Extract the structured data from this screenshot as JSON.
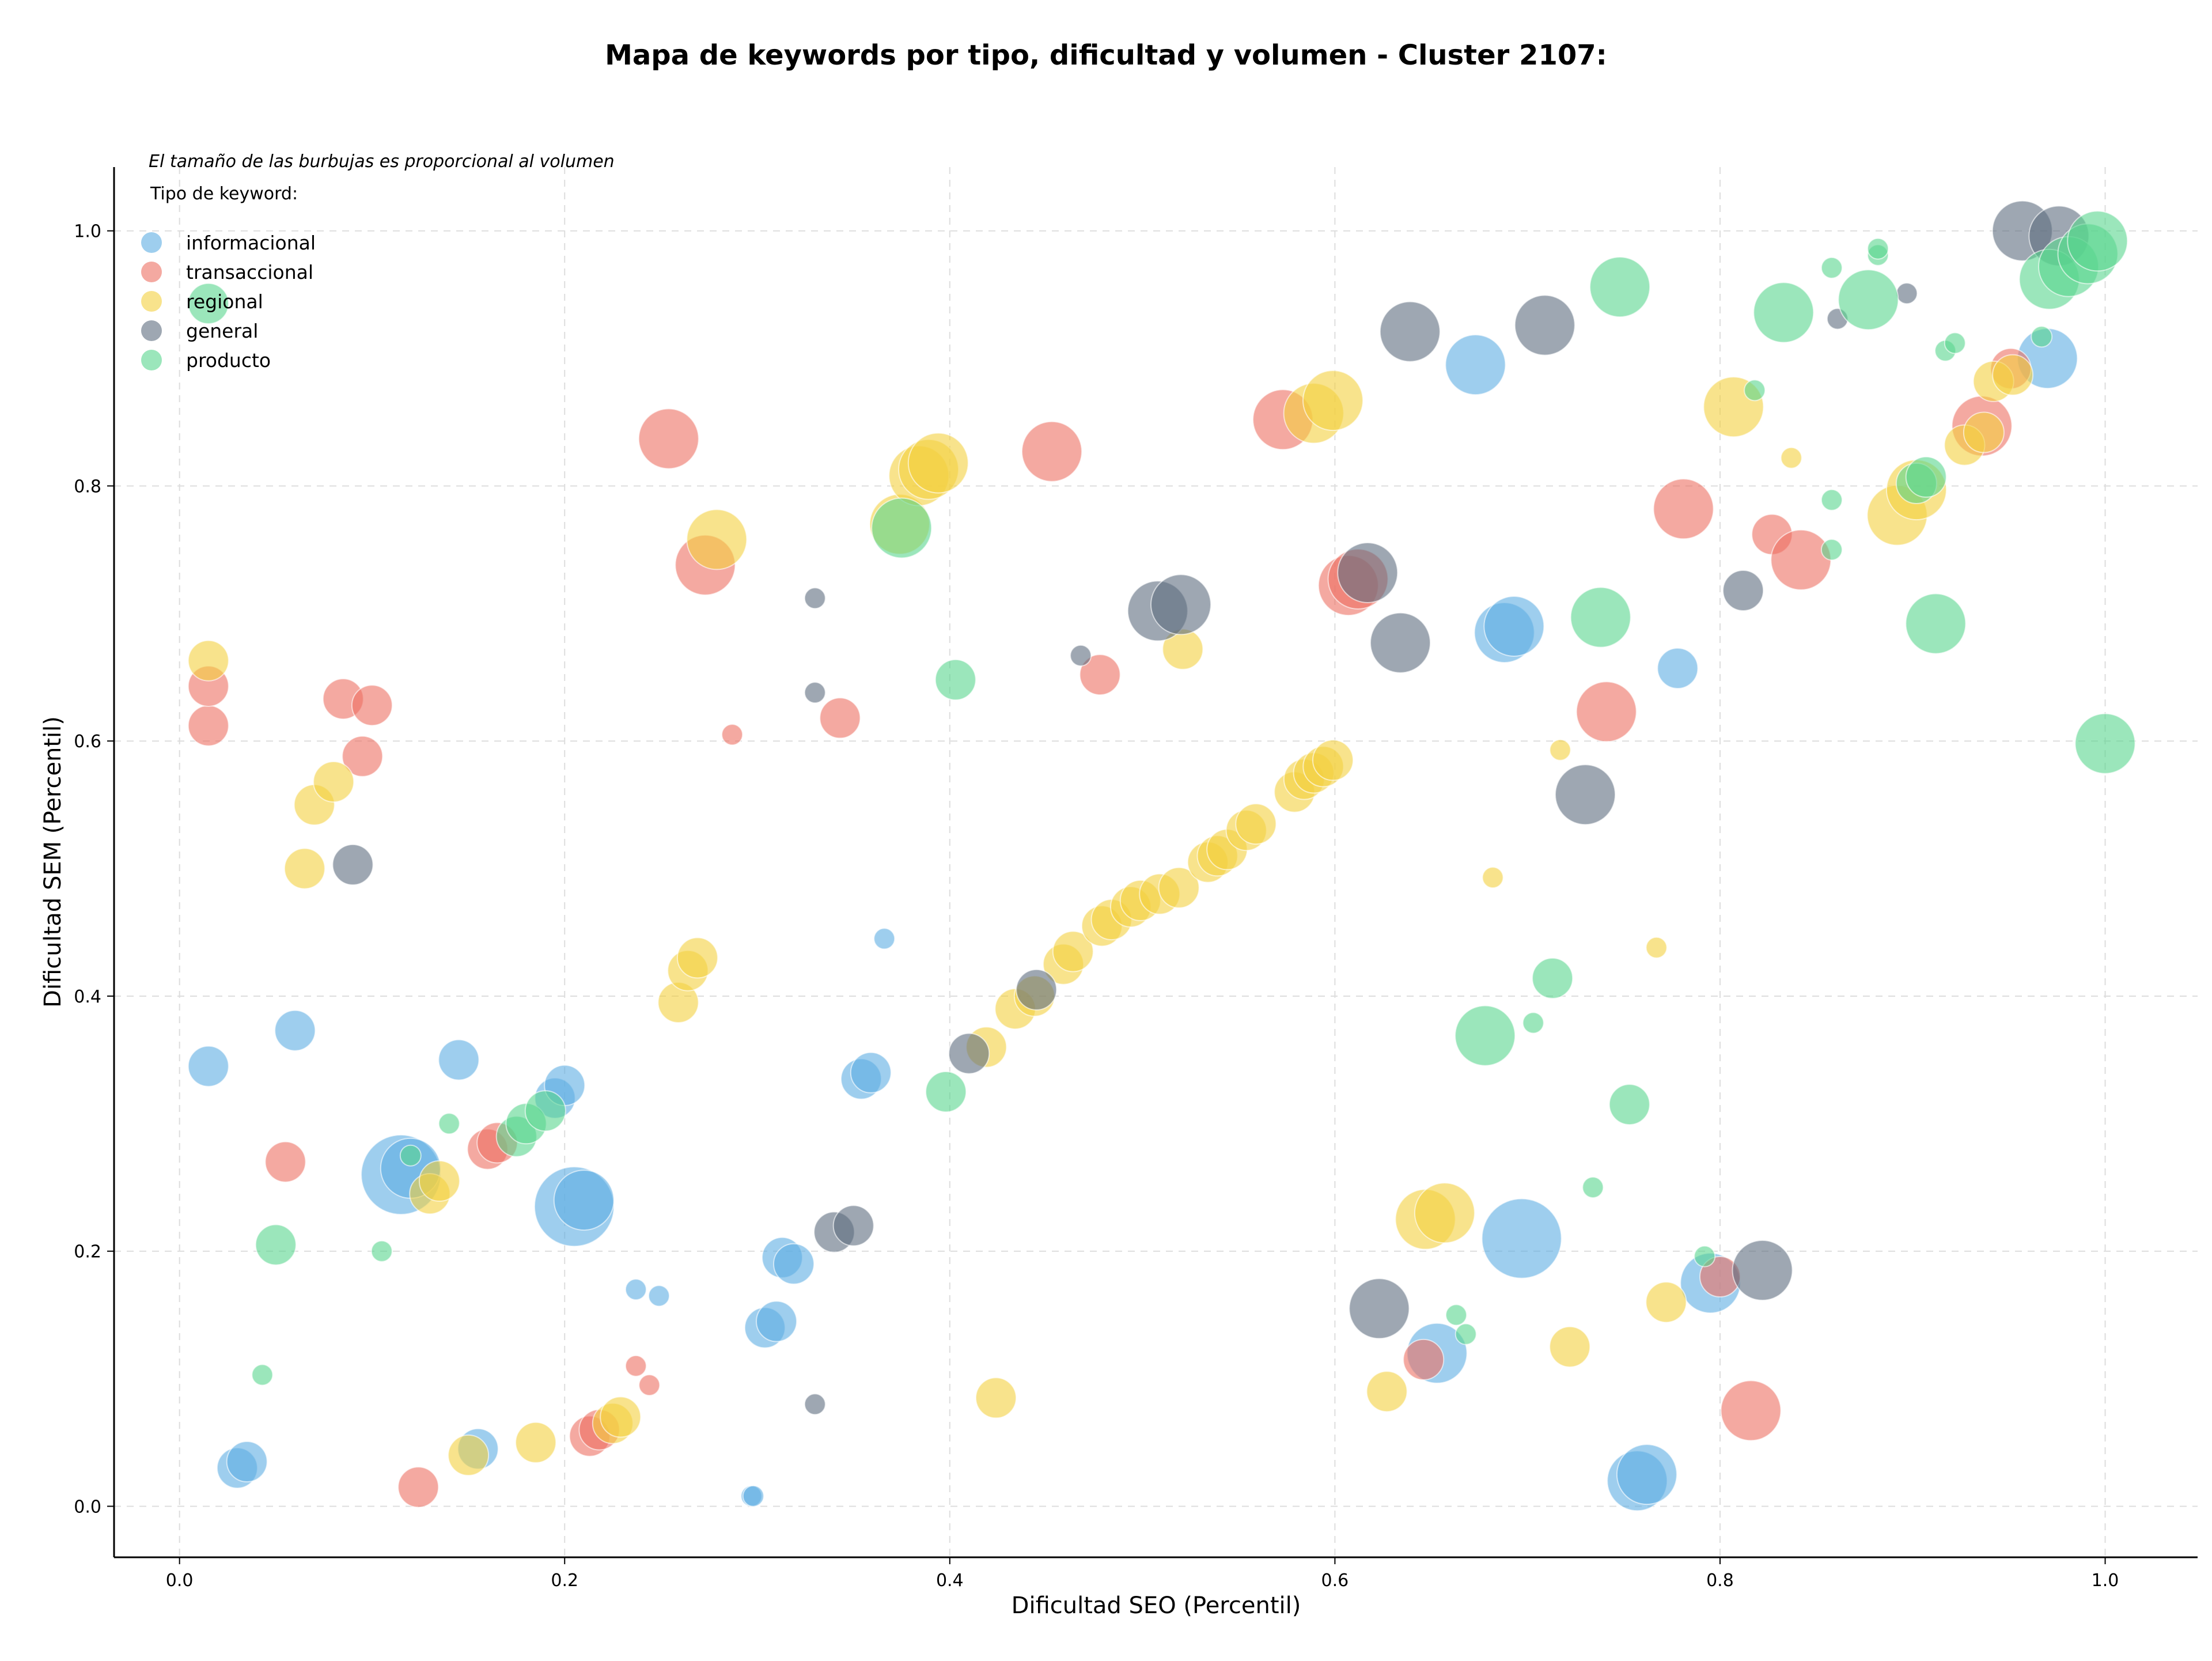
{
  "chart_data": {
    "type": "scatter",
    "title": "Mapa de keywords por tipo, dificultad y volumen - Cluster 2107:",
    "xlabel": "Dificultad SEO (Percentil)",
    "ylabel": "Dificultad SEM (Percentil)",
    "note": "El tamaño de las burbujas es proporcional al volumen",
    "legend_title": "Tipo de keyword:",
    "legend_position": "top-left",
    "xlim": [
      -0.034,
      1.048
    ],
    "ylim": [
      -0.04,
      1.05
    ],
    "x_ticks": [
      "0.0",
      "0.2",
      "0.4",
      "0.6",
      "0.8",
      "1.0"
    ],
    "y_ticks": [
      "0.0",
      "0.2",
      "0.4",
      "0.6",
      "0.8",
      "1.0"
    ],
    "grid": true,
    "size_unit": "relative volume (1-5)",
    "series": [
      {
        "name": "informacional",
        "color": "#5dade2",
        "points": [
          [
            0.015,
            0.345,
            2
          ],
          [
            0.06,
            0.373,
            2
          ],
          [
            0.03,
            0.03,
            2
          ],
          [
            0.035,
            0.035,
            2
          ],
          [
            0.115,
            0.26,
            4
          ],
          [
            0.12,
            0.265,
            3
          ],
          [
            0.145,
            0.35,
            2
          ],
          [
            0.155,
            0.045,
            2
          ],
          [
            0.195,
            0.32,
            2
          ],
          [
            0.2,
            0.33,
            2
          ],
          [
            0.205,
            0.235,
            4
          ],
          [
            0.21,
            0.24,
            3
          ],
          [
            0.237,
            0.17,
            1
          ],
          [
            0.249,
            0.165,
            1
          ],
          [
            0.297,
            0.008,
            1
          ],
          [
            0.298,
            0.008,
            1
          ],
          [
            0.304,
            0.14,
            2
          ],
          [
            0.31,
            0.145,
            2
          ],
          [
            0.313,
            0.195,
            2
          ],
          [
            0.319,
            0.19,
            2
          ],
          [
            0.354,
            0.335,
            2
          ],
          [
            0.359,
            0.34,
            2
          ],
          [
            0.366,
            0.445,
            1
          ],
          [
            0.673,
            0.895,
            3
          ],
          [
            0.688,
            0.685,
            3
          ],
          [
            0.693,
            0.69,
            3
          ],
          [
            0.697,
            0.21,
            4
          ],
          [
            0.757,
            0.02,
            3
          ],
          [
            0.762,
            0.025,
            3
          ],
          [
            0.778,
            0.657,
            2
          ],
          [
            0.795,
            0.175,
            3
          ],
          [
            0.653,
            0.12,
            3
          ],
          [
            0.97,
            0.9,
            3
          ]
        ]
      },
      {
        "name": "transaccional",
        "color": "#ec7063",
        "points": [
          [
            0.015,
            0.612,
            2
          ],
          [
            0.015,
            0.643,
            2
          ],
          [
            0.055,
            0.27,
            2
          ],
          [
            0.085,
            0.633,
            2
          ],
          [
            0.1,
            0.628,
            2
          ],
          [
            0.095,
            0.588,
            2
          ],
          [
            0.124,
            0.015,
            2
          ],
          [
            0.16,
            0.28,
            2
          ],
          [
            0.165,
            0.285,
            2
          ],
          [
            0.213,
            0.055,
            2
          ],
          [
            0.218,
            0.06,
            2
          ],
          [
            0.237,
            0.11,
            1
          ],
          [
            0.244,
            0.095,
            1
          ],
          [
            0.254,
            0.837,
            3
          ],
          [
            0.273,
            0.738,
            3
          ],
          [
            0.287,
            0.605,
            1
          ],
          [
            0.343,
            0.618,
            2
          ],
          [
            0.453,
            0.827,
            3
          ],
          [
            0.478,
            0.652,
            2
          ],
          [
            0.573,
            0.852,
            3
          ],
          [
            0.607,
            0.722,
            3
          ],
          [
            0.612,
            0.727,
            3
          ],
          [
            0.646,
            0.115,
            2
          ],
          [
            0.741,
            0.623,
            3
          ],
          [
            0.781,
            0.782,
            3
          ],
          [
            0.8,
            0.18,
            2
          ],
          [
            0.816,
            0.075,
            3
          ],
          [
            0.827,
            0.762,
            2
          ],
          [
            0.842,
            0.742,
            3
          ],
          [
            0.936,
            0.847,
            3
          ],
          [
            0.951,
            0.892,
            2
          ]
        ]
      },
      {
        "name": "regional",
        "color": "#f4d03f",
        "points": [
          [
            0.015,
            0.663,
            2
          ],
          [
            0.065,
            0.5,
            2
          ],
          [
            0.07,
            0.55,
            2
          ],
          [
            0.08,
            0.568,
            2
          ],
          [
            0.13,
            0.245,
            2
          ],
          [
            0.135,
            0.255,
            2
          ],
          [
            0.15,
            0.04,
            2
          ],
          [
            0.185,
            0.05,
            2
          ],
          [
            0.225,
            0.065,
            2
          ],
          [
            0.229,
            0.07,
            2
          ],
          [
            0.259,
            0.395,
            2
          ],
          [
            0.264,
            0.42,
            2
          ],
          [
            0.269,
            0.43,
            2
          ],
          [
            0.279,
            0.758,
            3
          ],
          [
            0.374,
            0.77,
            3
          ],
          [
            0.384,
            0.808,
            3
          ],
          [
            0.389,
            0.813,
            3
          ],
          [
            0.394,
            0.818,
            3
          ],
          [
            0.419,
            0.36,
            2
          ],
          [
            0.424,
            0.085,
            2
          ],
          [
            0.434,
            0.39,
            2
          ],
          [
            0.444,
            0.4,
            2
          ],
          [
            0.459,
            0.425,
            2
          ],
          [
            0.464,
            0.435,
            2
          ],
          [
            0.479,
            0.455,
            2
          ],
          [
            0.484,
            0.46,
            2
          ],
          [
            0.494,
            0.47,
            2
          ],
          [
            0.499,
            0.475,
            2
          ],
          [
            0.509,
            0.48,
            2
          ],
          [
            0.519,
            0.485,
            2
          ],
          [
            0.521,
            0.672,
            2
          ],
          [
            0.534,
            0.505,
            2
          ],
          [
            0.539,
            0.51,
            2
          ],
          [
            0.544,
            0.515,
            2
          ],
          [
            0.554,
            0.53,
            2
          ],
          [
            0.559,
            0.535,
            2
          ],
          [
            0.579,
            0.56,
            2
          ],
          [
            0.584,
            0.57,
            2
          ],
          [
            0.589,
            0.575,
            2
          ],
          [
            0.594,
            0.58,
            2
          ],
          [
            0.599,
            0.585,
            2
          ],
          [
            0.589,
            0.857,
            3
          ],
          [
            0.599,
            0.867,
            3
          ],
          [
            0.627,
            0.09,
            2
          ],
          [
            0.647,
            0.225,
            3
          ],
          [
            0.657,
            0.23,
            3
          ],
          [
            0.682,
            0.493,
            1
          ],
          [
            0.717,
            0.593,
            1
          ],
          [
            0.722,
            0.125,
            2
          ],
          [
            0.767,
            0.438,
            1
          ],
          [
            0.772,
            0.16,
            2
          ],
          [
            0.807,
            0.862,
            3
          ],
          [
            0.837,
            0.822,
            1
          ],
          [
            0.892,
            0.777,
            3
          ],
          [
            0.902,
            0.797,
            3
          ],
          [
            0.927,
            0.832,
            2
          ],
          [
            0.937,
            0.842,
            2
          ],
          [
            0.942,
            0.882,
            2
          ],
          [
            0.952,
            0.887,
            2
          ]
        ]
      },
      {
        "name": "general",
        "color": "#5d6d7e",
        "points": [
          [
            0.09,
            0.503,
            2
          ],
          [
            0.33,
            0.712,
            1
          ],
          [
            0.33,
            0.638,
            1
          ],
          [
            0.34,
            0.215,
            2
          ],
          [
            0.35,
            0.22,
            2
          ],
          [
            0.33,
            0.08,
            1
          ],
          [
            0.41,
            0.355,
            2
          ],
          [
            0.445,
            0.405,
            2
          ],
          [
            0.468,
            0.667,
            1
          ],
          [
            0.508,
            0.702,
            3
          ],
          [
            0.52,
            0.707,
            3
          ],
          [
            0.617,
            0.732,
            3
          ],
          [
            0.623,
            0.155,
            3
          ],
          [
            0.634,
            0.677,
            3
          ],
          [
            0.639,
            0.921,
            3
          ],
          [
            0.709,
            0.926,
            3
          ],
          [
            0.73,
            0.558,
            3
          ],
          [
            0.812,
            0.718,
            2
          ],
          [
            0.822,
            0.185,
            3
          ],
          [
            0.861,
            0.931,
            1
          ],
          [
            0.897,
            0.951,
            1
          ],
          [
            0.957,
            1.0,
            3
          ],
          [
            0.976,
            0.996,
            3
          ]
        ]
      },
      {
        "name": "producto",
        "color": "#58d68d",
        "points": [
          [
            0.015,
            0.943,
            2
          ],
          [
            0.043,
            0.103,
            1
          ],
          [
            0.05,
            0.205,
            2
          ],
          [
            0.105,
            0.2,
            1
          ],
          [
            0.12,
            0.275,
            1
          ],
          [
            0.14,
            0.3,
            1
          ],
          [
            0.175,
            0.29,
            2
          ],
          [
            0.18,
            0.3,
            2
          ],
          [
            0.19,
            0.31,
            2
          ],
          [
            0.375,
            0.767,
            3
          ],
          [
            0.398,
            0.325,
            2
          ],
          [
            0.403,
            0.648,
            2
          ],
          [
            0.663,
            0.15,
            1
          ],
          [
            0.668,
            0.135,
            1
          ],
          [
            0.678,
            0.369,
            3
          ],
          [
            0.703,
            0.379,
            1
          ],
          [
            0.713,
            0.414,
            2
          ],
          [
            0.734,
            0.25,
            1
          ],
          [
            0.738,
            0.697,
            3
          ],
          [
            0.748,
            0.956,
            3
          ],
          [
            0.753,
            0.315,
            2
          ],
          [
            0.792,
            0.196,
            1
          ],
          [
            0.818,
            0.875,
            1
          ],
          [
            0.833,
            0.936,
            3
          ],
          [
            0.858,
            0.971,
            1
          ],
          [
            0.858,
            0.789,
            1
          ],
          [
            0.858,
            0.75,
            1
          ],
          [
            0.877,
            0.946,
            3
          ],
          [
            0.882,
            0.981,
            1
          ],
          [
            0.882,
            0.986,
            1
          ],
          [
            0.902,
            0.802,
            2
          ],
          [
            0.907,
            0.807,
            2
          ],
          [
            0.912,
            0.692,
            3
          ],
          [
            0.917,
            0.906,
            1
          ],
          [
            0.922,
            0.912,
            1
          ],
          [
            0.967,
            0.917,
            1
          ],
          [
            0.971,
            0.962,
            3
          ],
          [
            0.981,
            0.972,
            3
          ],
          [
            0.991,
            0.982,
            3
          ],
          [
            0.996,
            0.992,
            3
          ],
          [
            1.0,
            0.598,
            3
          ]
        ]
      }
    ]
  }
}
